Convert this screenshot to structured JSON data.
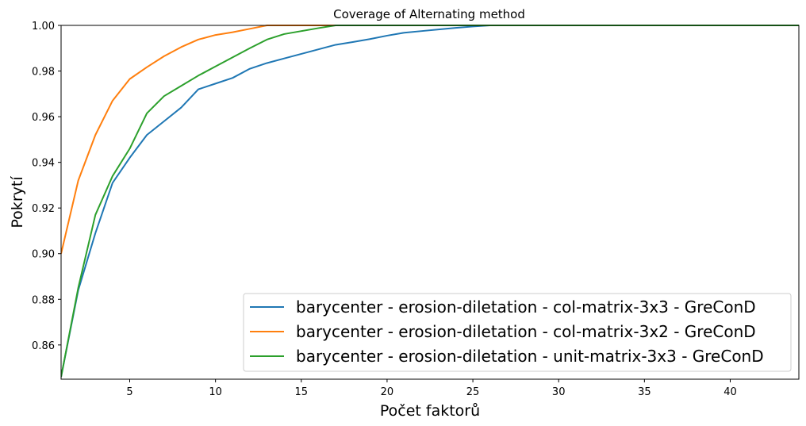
{
  "chart_data": {
    "type": "line",
    "title": "Coverage of Alternating method",
    "xlabel": "Počet faktorů",
    "ylabel": "Pokrytí",
    "xlim": [
      1,
      44
    ],
    "ylim": [
      0.845,
      1.0
    ],
    "xticks": [
      5,
      10,
      15,
      20,
      25,
      30,
      35,
      40
    ],
    "yticks": [
      0.86,
      0.88,
      0.9,
      0.92,
      0.94,
      0.96,
      0.98,
      1.0
    ],
    "ytick_labels": [
      "0.86",
      "0.88",
      "0.90",
      "0.92",
      "0.94",
      "0.96",
      "0.98",
      "1.00"
    ],
    "grid": false,
    "legend_position": "lower-right",
    "series": [
      {
        "name": "barycenter - erosion-diletation - col-matrix-3x3 - GreConD",
        "color": "#1f77b4",
        "x": [
          1,
          2,
          3,
          4,
          5,
          6,
          7,
          8,
          9,
          10,
          11,
          12,
          13,
          14,
          15,
          16,
          17,
          18,
          19,
          20,
          21,
          22,
          23,
          24,
          25,
          26,
          27,
          28,
          29,
          30,
          31,
          32,
          33,
          34,
          35,
          36,
          37,
          38,
          39,
          40,
          41,
          42,
          43,
          44
        ],
        "y": [
          0.846,
          0.884,
          0.909,
          0.931,
          0.942,
          0.952,
          0.958,
          0.964,
          0.972,
          0.9745,
          0.977,
          0.981,
          0.9835,
          0.9855,
          0.9875,
          0.9895,
          0.9915,
          0.9927,
          0.994,
          0.9955,
          0.9968,
          0.9975,
          0.9982,
          0.9989,
          0.9995,
          1.0,
          1.0,
          1.0,
          1.0,
          1.0,
          1.0,
          1.0,
          1.0,
          1.0,
          1.0,
          1.0,
          1.0,
          1.0,
          1.0,
          1.0,
          1.0,
          1.0,
          1.0,
          1.0
        ]
      },
      {
        "name": "barycenter - erosion-diletation - col-matrix-3x2 - GreConD",
        "color": "#ff7f0e",
        "x": [
          1,
          2,
          3,
          4,
          5,
          6,
          7,
          8,
          9,
          10,
          11,
          12,
          13,
          14,
          15,
          16,
          17,
          18,
          19,
          20,
          21,
          22,
          23,
          24,
          25,
          26,
          27,
          28,
          29,
          30,
          31,
          32,
          33,
          34,
          35,
          36,
          37,
          38,
          39,
          40,
          41,
          42,
          43,
          44
        ],
        "y": [
          0.9,
          0.932,
          0.952,
          0.967,
          0.9765,
          0.9817,
          0.9865,
          0.9905,
          0.9938,
          0.9958,
          0.997,
          0.9985,
          1.0,
          1.0,
          1.0,
          1.0,
          1.0,
          1.0,
          1.0,
          1.0,
          1.0,
          1.0,
          1.0,
          1.0,
          1.0,
          1.0,
          1.0,
          1.0,
          1.0,
          1.0,
          1.0,
          1.0,
          1.0,
          1.0,
          1.0,
          1.0,
          1.0,
          1.0,
          1.0,
          1.0,
          1.0,
          1.0,
          1.0,
          1.0
        ]
      },
      {
        "name": "barycenter - erosion-diletation - unit-matrix-3x3 - GreConD",
        "color": "#2ca02c",
        "x": [
          1,
          2,
          3,
          4,
          5,
          6,
          7,
          8,
          9,
          10,
          11,
          12,
          13,
          14,
          15,
          16,
          17,
          18,
          19,
          20,
          21,
          22,
          23,
          24,
          25,
          26,
          27,
          28,
          29,
          30,
          31,
          32,
          33,
          34,
          35,
          36,
          37,
          38,
          39,
          40,
          41,
          42,
          43,
          44
        ],
        "y": [
          0.846,
          0.885,
          0.917,
          0.934,
          0.946,
          0.9615,
          0.969,
          0.9735,
          0.978,
          0.982,
          0.986,
          0.99,
          0.9938,
          0.9962,
          0.9975,
          0.9988,
          1.0,
          1.0,
          1.0,
          1.0,
          1.0,
          1.0,
          1.0,
          1.0,
          1.0,
          1.0,
          1.0,
          1.0,
          1.0,
          1.0,
          1.0,
          1.0,
          1.0,
          1.0,
          1.0,
          1.0,
          1.0,
          1.0,
          1.0,
          1.0,
          1.0,
          1.0,
          1.0,
          1.0
        ]
      }
    ]
  }
}
